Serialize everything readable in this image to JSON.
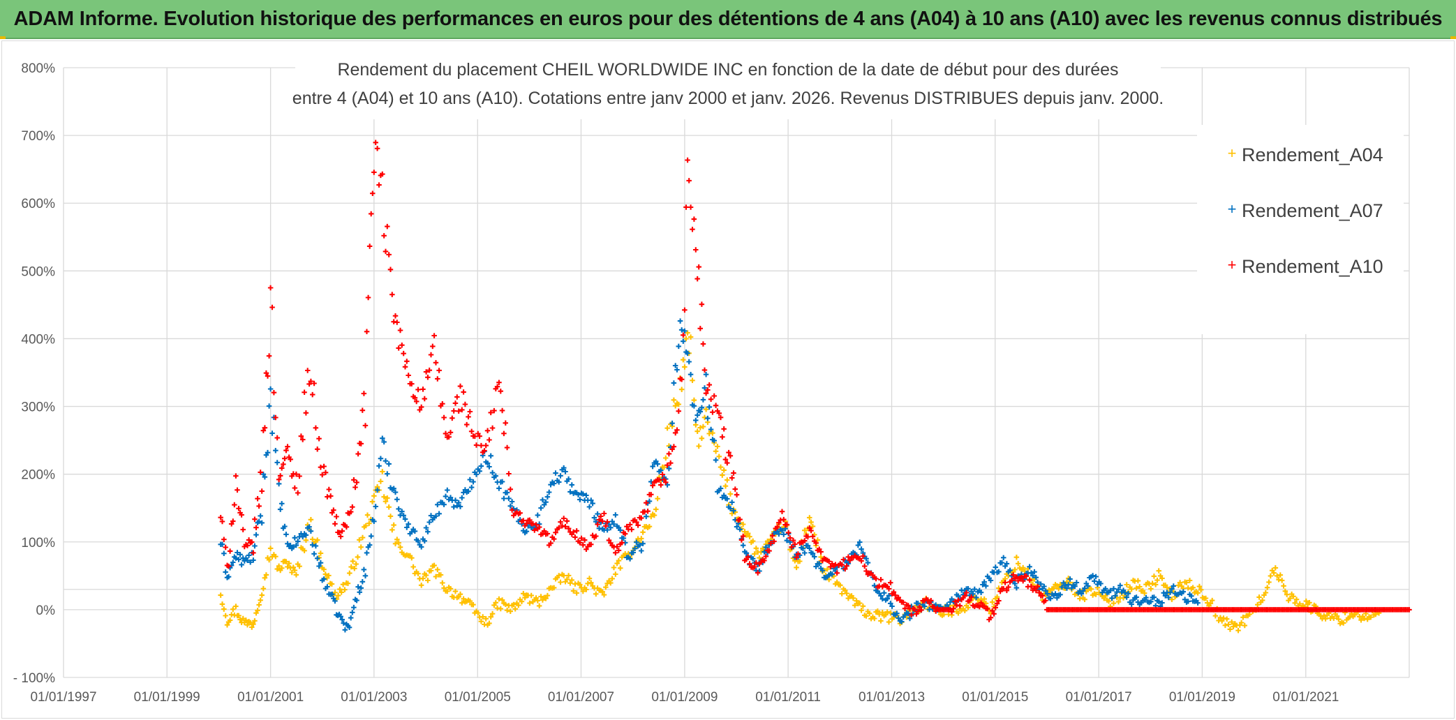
{
  "banner": {
    "title": "ADAM Informe. Evolution historique des performances en euros pour des détentions de 4 ans (A04) à 10 ans (A10) avec les revenus connus distribués"
  },
  "colors": {
    "banner_bg": "#7ac57a",
    "A04": "#ffc000",
    "A07": "#0070c0",
    "A10": "#ff0000",
    "grid": "#d9d9d9"
  },
  "chart_data": {
    "type": "scatter",
    "title_lines": [
      "Rendement du placement CHEIL WORLDWIDE INC en fonction de la date de début pour des durées",
      "entre 4 (A04) et 10 ans (A10). Cotations entre janv 2000 et janv. 2026. Revenus DISTRIBUES depuis janv. 2000."
    ],
    "x_ticks": [
      "01/01/1997",
      "01/01/1999",
      "01/01/2001",
      "01/01/2003",
      "01/01/2005",
      "01/01/2007",
      "01/01/2009",
      "01/01/2011",
      "01/01/2013",
      "01/01/2015",
      "01/01/2017",
      "01/01/2019",
      "01/01/2021"
    ],
    "xlim": [
      "1997-01-01",
      "2023-01-01"
    ],
    "y_ticks": [
      "800%",
      "700%",
      "600%",
      "500%",
      "400%",
      "300%",
      "200%",
      "100%",
      "0%",
      "- 100%"
    ],
    "ylim": [
      -100,
      800
    ],
    "legend_position": "top-right",
    "series": [
      {
        "name": "Rendement_A04",
        "color": "#ffc000",
        "points": [
          [
            "2000-01-15",
            25
          ],
          [
            "2000-03-01",
            -15
          ],
          [
            "2000-05-01",
            0
          ],
          [
            "2000-07-01",
            -20
          ],
          [
            "2000-09-01",
            -20
          ],
          [
            "2000-11-01",
            30
          ],
          [
            "2001-01-01",
            90
          ],
          [
            "2001-03-01",
            60
          ],
          [
            "2001-05-01",
            70
          ],
          [
            "2001-07-01",
            50
          ],
          [
            "2001-10-01",
            130
          ],
          [
            "2002-01-01",
            70
          ],
          [
            "2002-04-01",
            20
          ],
          [
            "2002-07-01",
            40
          ],
          [
            "2002-10-01",
            100
          ],
          [
            "2003-01-01",
            160
          ],
          [
            "2003-03-01",
            190
          ],
          [
            "2003-06-01",
            100
          ],
          [
            "2003-09-01",
            80
          ],
          [
            "2003-12-01",
            40
          ],
          [
            "2004-03-01",
            60
          ],
          [
            "2004-06-01",
            30
          ],
          [
            "2004-09-01",
            20
          ],
          [
            "2004-12-01",
            0
          ],
          [
            "2005-03-01",
            -20
          ],
          [
            "2005-06-01",
            10
          ],
          [
            "2005-09-01",
            0
          ],
          [
            "2005-12-01",
            20
          ],
          [
            "2006-03-01",
            10
          ],
          [
            "2006-06-01",
            30
          ],
          [
            "2006-09-01",
            50
          ],
          [
            "2006-12-01",
            30
          ],
          [
            "2007-03-01",
            40
          ],
          [
            "2007-06-01",
            20
          ],
          [
            "2007-09-01",
            60
          ],
          [
            "2007-12-01",
            80
          ],
          [
            "2008-03-01",
            110
          ],
          [
            "2008-06-01",
            140
          ],
          [
            "2008-09-01",
            250
          ],
          [
            "2008-12-01",
            330
          ],
          [
            "2009-02-01",
            400
          ],
          [
            "2009-04-01",
            250
          ],
          [
            "2009-06-01",
            280
          ],
          [
            "2009-09-01",
            220
          ],
          [
            "2009-12-01",
            150
          ],
          [
            "2010-03-01",
            120
          ],
          [
            "2010-06-01",
            80
          ],
          [
            "2010-09-01",
            100
          ],
          [
            "2010-12-01",
            130
          ],
          [
            "2011-03-01",
            60
          ],
          [
            "2011-06-01",
            140
          ],
          [
            "2011-09-01",
            60
          ],
          [
            "2011-12-01",
            40
          ],
          [
            "2012-03-01",
            20
          ],
          [
            "2012-06-01",
            0
          ],
          [
            "2012-09-01",
            -10
          ],
          [
            "2012-12-01",
            -10
          ],
          [
            "2013-03-01",
            -15
          ],
          [
            "2013-06-01",
            0
          ],
          [
            "2013-09-01",
            10
          ],
          [
            "2013-12-01",
            -5
          ],
          [
            "2014-03-01",
            0
          ],
          [
            "2014-06-01",
            5
          ],
          [
            "2014-09-01",
            20
          ],
          [
            "2014-12-01",
            0
          ],
          [
            "2015-03-01",
            40
          ],
          [
            "2015-06-01",
            70
          ],
          [
            "2015-09-01",
            50
          ],
          [
            "2015-12-01",
            20
          ],
          [
            "2016-03-01",
            30
          ],
          [
            "2016-06-01",
            40
          ],
          [
            "2016-09-01",
            20
          ],
          [
            "2016-12-01",
            30
          ],
          [
            "2017-03-01",
            10
          ],
          [
            "2017-06-01",
            20
          ],
          [
            "2017-09-01",
            40
          ],
          [
            "2017-12-01",
            30
          ],
          [
            "2018-03-01",
            50
          ],
          [
            "2018-06-01",
            20
          ],
          [
            "2018-09-01",
            40
          ],
          [
            "2018-12-01",
            30
          ],
          [
            "2019-03-01",
            10
          ],
          [
            "2019-06-01",
            -20
          ],
          [
            "2019-09-01",
            -25
          ],
          [
            "2019-12-01",
            -10
          ],
          [
            "2020-03-01",
            20
          ],
          [
            "2020-06-01",
            60
          ],
          [
            "2020-09-01",
            20
          ],
          [
            "2020-12-01",
            10
          ],
          [
            "2021-03-01",
            0
          ],
          [
            "2021-06-01",
            -10
          ],
          [
            "2021-09-01",
            -15
          ],
          [
            "2021-12-01",
            -5
          ],
          [
            "2022-03-01",
            -10
          ],
          [
            "2022-06-01",
            -5
          ]
        ]
      },
      {
        "name": "Rendement_A07",
        "color": "#0070c0",
        "points": [
          [
            "2000-01-15",
            100
          ],
          [
            "2000-03-01",
            50
          ],
          [
            "2000-05-01",
            80
          ],
          [
            "2000-07-01",
            70
          ],
          [
            "2000-09-01",
            80
          ],
          [
            "2000-11-01",
            150
          ],
          [
            "2001-01-01",
            320
          ],
          [
            "2001-03-01",
            170
          ],
          [
            "2001-05-01",
            90
          ],
          [
            "2001-07-01",
            100
          ],
          [
            "2001-10-01",
            120
          ],
          [
            "2002-01-01",
            50
          ],
          [
            "2002-03-01",
            20
          ],
          [
            "2002-05-01",
            -10
          ],
          [
            "2002-07-01",
            -30
          ],
          [
            "2002-09-01",
            20
          ],
          [
            "2002-11-01",
            60
          ],
          [
            "2003-01-01",
            140
          ],
          [
            "2003-03-01",
            240
          ],
          [
            "2003-06-01",
            170
          ],
          [
            "2003-09-01",
            120
          ],
          [
            "2003-12-01",
            100
          ],
          [
            "2004-03-01",
            140
          ],
          [
            "2004-06-01",
            170
          ],
          [
            "2004-09-01",
            150
          ],
          [
            "2004-12-01",
            200
          ],
          [
            "2005-03-01",
            230
          ],
          [
            "2005-06-01",
            190
          ],
          [
            "2005-09-01",
            150
          ],
          [
            "2005-12-01",
            120
          ],
          [
            "2006-03-01",
            130
          ],
          [
            "2006-06-01",
            190
          ],
          [
            "2006-09-01",
            200
          ],
          [
            "2006-12-01",
            170
          ],
          [
            "2007-03-01",
            160
          ],
          [
            "2007-06-01",
            120
          ],
          [
            "2007-09-01",
            130
          ],
          [
            "2007-12-01",
            80
          ],
          [
            "2008-03-01",
            100
          ],
          [
            "2008-06-01",
            220
          ],
          [
            "2008-09-01",
            180
          ],
          [
            "2008-12-01",
            450
          ],
          [
            "2009-02-01",
            350
          ],
          [
            "2009-04-01",
            280
          ],
          [
            "2009-06-01",
            320
          ],
          [
            "2009-09-01",
            180
          ],
          [
            "2009-12-01",
            150
          ],
          [
            "2010-03-01",
            80
          ],
          [
            "2010-06-01",
            60
          ],
          [
            "2010-09-01",
            100
          ],
          [
            "2010-12-01",
            120
          ],
          [
            "2011-03-01",
            80
          ],
          [
            "2011-06-01",
            90
          ],
          [
            "2011-09-01",
            50
          ],
          [
            "2011-12-01",
            60
          ],
          [
            "2012-03-01",
            70
          ],
          [
            "2012-06-01",
            100
          ],
          [
            "2012-09-01",
            30
          ],
          [
            "2012-12-01",
            20
          ],
          [
            "2013-03-01",
            -20
          ],
          [
            "2013-06-01",
            0
          ],
          [
            "2013-09-01",
            10
          ],
          [
            "2013-12-01",
            0
          ],
          [
            "2014-03-01",
            10
          ],
          [
            "2014-06-01",
            30
          ],
          [
            "2014-09-01",
            20
          ],
          [
            "2014-12-01",
            50
          ],
          [
            "2015-03-01",
            70
          ],
          [
            "2015-06-01",
            40
          ],
          [
            "2015-09-01",
            60
          ],
          [
            "2015-12-01",
            30
          ],
          [
            "2016-03-01",
            20
          ],
          [
            "2016-06-01",
            40
          ],
          [
            "2016-09-01",
            30
          ],
          [
            "2016-12-01",
            50
          ],
          [
            "2017-03-01",
            20
          ],
          [
            "2017-06-01",
            30
          ],
          [
            "2017-09-01",
            10
          ],
          [
            "2017-12-01",
            20
          ],
          [
            "2018-03-01",
            10
          ],
          [
            "2018-06-01",
            30
          ],
          [
            "2018-09-01",
            20
          ],
          [
            "2018-12-01",
            10
          ]
        ]
      },
      {
        "name": "Rendement_A10",
        "color": "#ff0000",
        "points": [
          [
            "2000-01-15",
            140
          ],
          [
            "2000-03-01",
            60
          ],
          [
            "2000-05-01",
            190
          ],
          [
            "2000-07-01",
            90
          ],
          [
            "2000-09-01",
            100
          ],
          [
            "2000-11-01",
            200
          ],
          [
            "2001-01-01",
            460
          ],
          [
            "2001-03-01",
            200
          ],
          [
            "2001-05-01",
            230
          ],
          [
            "2001-07-01",
            180
          ],
          [
            "2001-10-01",
            360
          ],
          [
            "2002-01-01",
            210
          ],
          [
            "2002-03-01",
            160
          ],
          [
            "2002-05-01",
            110
          ],
          [
            "2002-07-01",
            130
          ],
          [
            "2002-09-01",
            200
          ],
          [
            "2002-11-01",
            320
          ],
          [
            "2003-01-01",
            680
          ],
          [
            "2003-03-01",
            600
          ],
          [
            "2003-06-01",
            420
          ],
          [
            "2003-09-01",
            350
          ],
          [
            "2003-12-01",
            300
          ],
          [
            "2004-03-01",
            380
          ],
          [
            "2004-06-01",
            250
          ],
          [
            "2004-09-01",
            320
          ],
          [
            "2004-12-01",
            260
          ],
          [
            "2005-03-01",
            230
          ],
          [
            "2005-06-01",
            340
          ],
          [
            "2005-09-01",
            150
          ],
          [
            "2005-12-01",
            130
          ],
          [
            "2006-03-01",
            120
          ],
          [
            "2006-06-01",
            100
          ],
          [
            "2006-09-01",
            130
          ],
          [
            "2006-12-01",
            110
          ],
          [
            "2007-03-01",
            90
          ],
          [
            "2007-06-01",
            140
          ],
          [
            "2007-09-01",
            80
          ],
          [
            "2007-12-01",
            120
          ],
          [
            "2008-03-01",
            130
          ],
          [
            "2008-06-01",
            180
          ],
          [
            "2008-09-01",
            200
          ],
          [
            "2008-12-01",
            300
          ],
          [
            "2009-02-01",
            660
          ],
          [
            "2009-04-01",
            500
          ],
          [
            "2009-06-01",
            330
          ],
          [
            "2009-09-01",
            280
          ],
          [
            "2009-12-01",
            200
          ],
          [
            "2010-03-01",
            80
          ],
          [
            "2010-06-01",
            60
          ],
          [
            "2010-09-01",
            100
          ],
          [
            "2010-12-01",
            140
          ],
          [
            "2011-03-01",
            80
          ],
          [
            "2011-06-01",
            120
          ],
          [
            "2011-09-01",
            80
          ],
          [
            "2011-12-01",
            60
          ],
          [
            "2012-03-01",
            70
          ],
          [
            "2012-06-01",
            80
          ],
          [
            "2012-09-01",
            40
          ],
          [
            "2012-12-01",
            40
          ],
          [
            "2013-03-01",
            10
          ],
          [
            "2013-06-01",
            -5
          ],
          [
            "2013-09-01",
            10
          ],
          [
            "2013-12-01",
            0
          ],
          [
            "2014-03-01",
            0
          ],
          [
            "2014-06-01",
            20
          ],
          [
            "2014-09-01",
            10
          ],
          [
            "2014-12-01",
            -10
          ],
          [
            "2015-03-01",
            30
          ],
          [
            "2015-06-01",
            50
          ],
          [
            "2015-09-01",
            40
          ],
          [
            "2015-12-01",
            20
          ],
          [
            "2016-01-01",
            0
          ],
          [
            "2017-01-01",
            0
          ],
          [
            "2018-01-01",
            0
          ],
          [
            "2019-01-01",
            0
          ],
          [
            "2020-01-01",
            0
          ],
          [
            "2021-01-01",
            0
          ],
          [
            "2022-01-01",
            0
          ],
          [
            "2023-01-01",
            0
          ]
        ]
      }
    ]
  }
}
